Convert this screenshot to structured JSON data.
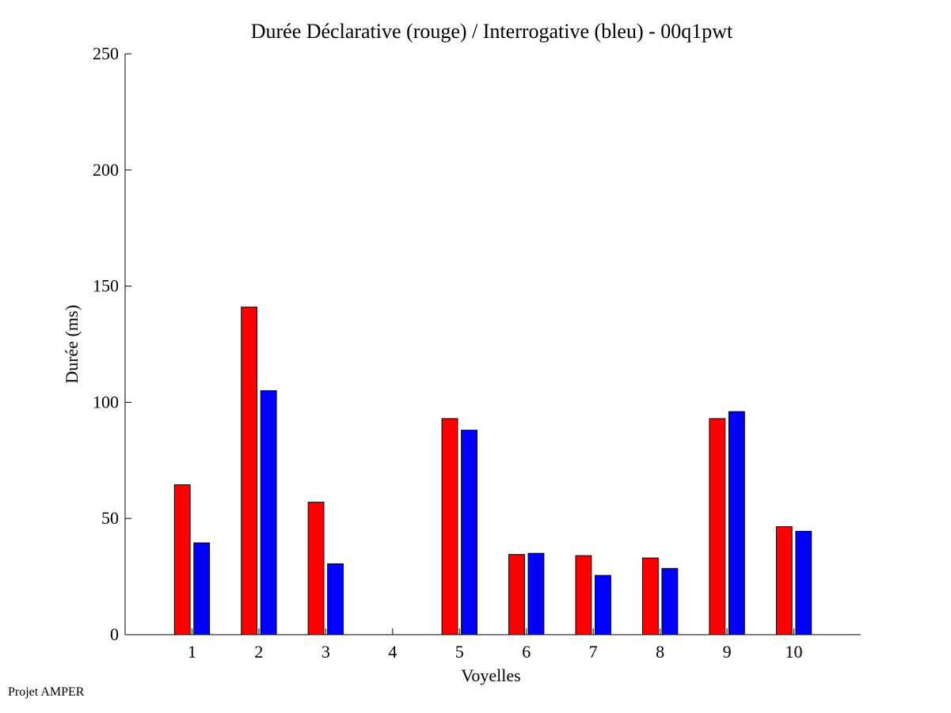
{
  "chart_data": {
    "type": "bar",
    "title": "Durée Déclarative (rouge) / Interrogative (bleu) - 00q1pwt",
    "xlabel": "Voyelles",
    "ylabel": "Durée (ms)",
    "ylim": [
      0,
      250
    ],
    "yticks": [
      0,
      50,
      100,
      150,
      200,
      250
    ],
    "categories": [
      "1",
      "2",
      "3",
      "4",
      "5",
      "6",
      "7",
      "8",
      "9",
      "10"
    ],
    "series": [
      {
        "values": [
          64.5,
          141,
          57,
          0,
          93,
          34.5,
          34,
          33,
          93,
          46.5
        ],
        "color": "#ff0000"
      },
      {
        "values": [
          39.5,
          105,
          30.5,
          0,
          88,
          35,
          25.5,
          28.5,
          96,
          44.5
        ],
        "color": "#0000ff"
      }
    ],
    "grid": false
  },
  "footer": {
    "credit": "Projet AMPER"
  }
}
